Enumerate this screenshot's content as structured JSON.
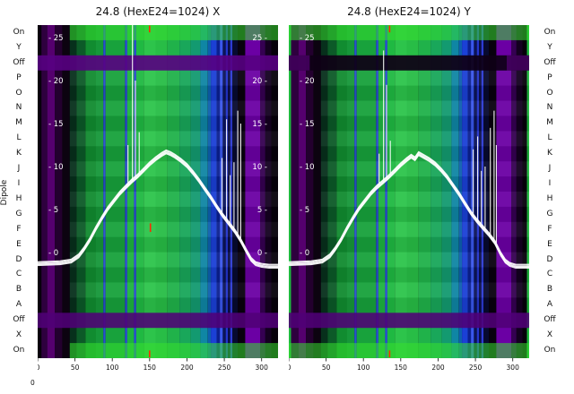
{
  "figure": {
    "dipole_label": "Dipole",
    "corner_label": "0"
  },
  "chart_data": [
    {
      "type": "heatmap+line",
      "title": "24.8 (HexE24=1024) X",
      "x_ticks": [
        0,
        50,
        100,
        150,
        200,
        250,
        300
      ],
      "x_max": 322,
      "y_inner_ticks": [
        25,
        20,
        15,
        10,
        5,
        0
      ],
      "inner_ticks_right": true,
      "y_categories": [
        "On",
        "Y",
        "Off",
        "P",
        "O",
        "N",
        "M",
        "L",
        "K",
        "J",
        "I",
        "H",
        "G",
        "F",
        "E",
        "D",
        "C",
        "B",
        "A",
        "Off",
        "X",
        "On"
      ],
      "heat_columns": [
        [
          0,
          5,
          "#08000c"
        ],
        [
          5,
          13,
          "#2e003e"
        ],
        [
          13,
          23,
          "#55006e"
        ],
        [
          23,
          33,
          "#23002e"
        ],
        [
          33,
          43,
          "#0c0310"
        ],
        [
          43,
          52,
          "#07301c"
        ],
        [
          52,
          64,
          "#0c5a28"
        ],
        [
          64,
          78,
          "#118c30"
        ],
        [
          78,
          88,
          "#169739"
        ],
        [
          88,
          91,
          "#2850d2"
        ],
        [
          91,
          117,
          "#18a23c"
        ],
        [
          117,
          120,
          "#2b4fd8"
        ],
        [
          120,
          129,
          "#1db43f"
        ],
        [
          129,
          132,
          "#2b4fd8"
        ],
        [
          132,
          142,
          "#1fb942"
        ],
        [
          142,
          158,
          "#2dc44b"
        ],
        [
          158,
          174,
          "#28bd46"
        ],
        [
          174,
          190,
          "#20b24a"
        ],
        [
          190,
          205,
          "#19a75a"
        ],
        [
          205,
          218,
          "#139a70"
        ],
        [
          218,
          228,
          "#0f86a4"
        ],
        [
          228,
          232,
          "#0d5fae"
        ],
        [
          232,
          240,
          "#1b40d6"
        ],
        [
          240,
          244,
          "#0c2090"
        ],
        [
          244,
          248,
          "#3a57ee"
        ],
        [
          248,
          252,
          "#0b1458"
        ],
        [
          252,
          255,
          "#2334cc"
        ],
        [
          255,
          258,
          "#0a0e44"
        ],
        [
          258,
          261,
          "#2d3bd4"
        ],
        [
          261,
          268,
          "#070a30"
        ],
        [
          268,
          278,
          "#08010e"
        ],
        [
          278,
          298,
          "#6b00a4"
        ],
        [
          298,
          305,
          "#350052"
        ],
        [
          305,
          313,
          "#140020"
        ],
        [
          313,
          322,
          "#06000a"
        ]
      ],
      "row_overlays": [
        [
          0,
          43,
          322,
          "rgba(55,225,45,0.55)"
        ],
        [
          2,
          0,
          322,
          "rgba(88,0,130,0.9)"
        ],
        [
          19,
          0,
          322,
          "rgba(80,0,118,0.88)"
        ],
        [
          21,
          43,
          322,
          "rgba(55,225,45,0.55)"
        ]
      ],
      "trace": {
        "color": "#ffffff",
        "offsets": [
          -2.2,
          -1.2,
          0,
          1,
          2
        ],
        "points": [
          [
            0,
            -1.3
          ],
          [
            15,
            -1.25
          ],
          [
            30,
            -1.2
          ],
          [
            45,
            -1.0
          ],
          [
            55,
            -0.4
          ],
          [
            62,
            0.4
          ],
          [
            70,
            1.5
          ],
          [
            78,
            2.8
          ],
          [
            86,
            4.0
          ],
          [
            94,
            5.1
          ],
          [
            102,
            6.0
          ],
          [
            110,
            6.9
          ],
          [
            118,
            7.6
          ],
          [
            126,
            8.3
          ],
          [
            134,
            8.9
          ],
          [
            142,
            9.6
          ],
          [
            150,
            10.3
          ],
          [
            158,
            10.9
          ],
          [
            166,
            11.4
          ],
          [
            172,
            11.7
          ],
          [
            178,
            11.5
          ],
          [
            184,
            11.2
          ],
          [
            192,
            10.7
          ],
          [
            200,
            10.1
          ],
          [
            208,
            9.3
          ],
          [
            216,
            8.4
          ],
          [
            224,
            7.4
          ],
          [
            232,
            6.4
          ],
          [
            240,
            5.3
          ],
          [
            248,
            4.3
          ],
          [
            256,
            3.4
          ],
          [
            264,
            2.5
          ],
          [
            272,
            1.4
          ],
          [
            280,
            0.1
          ],
          [
            286,
            -0.8
          ],
          [
            292,
            -1.3
          ],
          [
            300,
            -1.5
          ],
          [
            310,
            -1.6
          ],
          [
            322,
            -1.6
          ]
        ]
      },
      "spikes": [
        [
          121,
          12.5
        ],
        [
          127,
          27.5
        ],
        [
          131,
          20
        ],
        [
          136,
          14
        ],
        [
          247,
          11
        ],
        [
          253,
          15.5
        ],
        [
          258,
          9
        ],
        [
          263,
          10.5
        ],
        [
          268,
          16.5
        ],
        [
          272,
          15
        ]
      ],
      "markers": {
        "color": "#ff2a00",
        "items": [
          [
            150,
            25.6,
            26.4
          ],
          [
            151,
            2.4,
            3.4
          ],
          [
            150,
            -11.4,
            -12.2
          ]
        ]
      }
    },
    {
      "type": "heatmap+line",
      "title": "24.8 (HexE24=1024) Y",
      "x_ticks": [
        0,
        50,
        100,
        150,
        200,
        250,
        300
      ],
      "x_max": 322,
      "y_inner_ticks": [
        25,
        20,
        15,
        10,
        5,
        0
      ],
      "inner_ticks_right": false,
      "y_categories": [
        "On",
        "Y",
        "Off",
        "P",
        "O",
        "N",
        "M",
        "L",
        "K",
        "J",
        "I",
        "H",
        "G",
        "F",
        "E",
        "D",
        "C",
        "B",
        "A",
        "Off",
        "X",
        "On"
      ],
      "heat_columns": [
        [
          0,
          3,
          "#1fb93f"
        ],
        [
          3,
          13,
          "#2e003e"
        ],
        [
          13,
          23,
          "#55006e"
        ],
        [
          23,
          33,
          "#23002e"
        ],
        [
          33,
          43,
          "#0c0310"
        ],
        [
          43,
          52,
          "#07301c"
        ],
        [
          52,
          64,
          "#0c5a28"
        ],
        [
          64,
          78,
          "#118c30"
        ],
        [
          78,
          88,
          "#169739"
        ],
        [
          88,
          91,
          "#2850d2"
        ],
        [
          91,
          117,
          "#18a23c"
        ],
        [
          117,
          120,
          "#2b4fd8"
        ],
        [
          120,
          129,
          "#1db43f"
        ],
        [
          129,
          132,
          "#2b4fd8"
        ],
        [
          132,
          142,
          "#1fb942"
        ],
        [
          142,
          158,
          "#2dc44b"
        ],
        [
          158,
          174,
          "#28bd46"
        ],
        [
          174,
          190,
          "#20b24a"
        ],
        [
          190,
          205,
          "#19a75a"
        ],
        [
          205,
          218,
          "#139a70"
        ],
        [
          218,
          228,
          "#0f86a4"
        ],
        [
          228,
          232,
          "#0d5fae"
        ],
        [
          232,
          240,
          "#1b40d6"
        ],
        [
          240,
          244,
          "#0c2090"
        ],
        [
          244,
          248,
          "#3a57ee"
        ],
        [
          248,
          252,
          "#0b1458"
        ],
        [
          252,
          255,
          "#2334cc"
        ],
        [
          255,
          258,
          "#0a0e44"
        ],
        [
          258,
          261,
          "#2d3bd4"
        ],
        [
          261,
          268,
          "#070a30"
        ],
        [
          268,
          278,
          "#08010e"
        ],
        [
          278,
          298,
          "#6b00a4"
        ],
        [
          298,
          305,
          "#350052"
        ],
        [
          305,
          313,
          "#140020"
        ],
        [
          313,
          319,
          "#06000a"
        ],
        [
          319,
          322,
          "#1fb93f"
        ]
      ],
      "row_overlays": [
        [
          0,
          0,
          322,
          "rgba(55,225,45,0.55)"
        ],
        [
          2,
          0,
          322,
          "rgba(15,0,22,0.93)"
        ],
        [
          2,
          0,
          28,
          "rgba(100,0,140,0.55)"
        ],
        [
          2,
          292,
          322,
          "rgba(100,0,140,0.55)"
        ],
        [
          19,
          0,
          322,
          "rgba(80,0,118,0.88)"
        ],
        [
          21,
          0,
          322,
          "rgba(55,225,45,0.55)"
        ]
      ],
      "trace": {
        "color": "#ffffff",
        "offsets": [
          -2.2,
          -1.2,
          0,
          1,
          2
        ],
        "points": [
          [
            0,
            -1.3
          ],
          [
            15,
            -1.25
          ],
          [
            30,
            -1.2
          ],
          [
            45,
            -1.0
          ],
          [
            55,
            -0.4
          ],
          [
            62,
            0.4
          ],
          [
            70,
            1.5
          ],
          [
            78,
            2.8
          ],
          [
            86,
            4.0
          ],
          [
            94,
            5.1
          ],
          [
            102,
            6.0
          ],
          [
            110,
            6.9
          ],
          [
            118,
            7.6
          ],
          [
            126,
            8.2
          ],
          [
            134,
            8.8
          ],
          [
            142,
            9.5
          ],
          [
            150,
            10.2
          ],
          [
            158,
            10.8
          ],
          [
            164,
            11.2
          ],
          [
            169,
            10.9
          ],
          [
            174,
            11.5
          ],
          [
            180,
            11.2
          ],
          [
            188,
            10.8
          ],
          [
            196,
            10.3
          ],
          [
            204,
            9.6
          ],
          [
            212,
            8.8
          ],
          [
            220,
            7.8
          ],
          [
            228,
            6.8
          ],
          [
            236,
            5.7
          ],
          [
            244,
            4.6
          ],
          [
            252,
            3.7
          ],
          [
            260,
            2.9
          ],
          [
            268,
            2.1
          ],
          [
            276,
            1.2
          ],
          [
            284,
            -0.2
          ],
          [
            290,
            -1.0
          ],
          [
            296,
            -1.4
          ],
          [
            304,
            -1.6
          ],
          [
            322,
            -1.6
          ]
        ]
      },
      "spikes": [
        [
          121,
          11.5
        ],
        [
          127,
          23.5
        ],
        [
          131,
          19.5
        ],
        [
          136,
          13
        ],
        [
          247,
          12
        ],
        [
          253,
          13.5
        ],
        [
          258,
          9.5
        ],
        [
          263,
          10
        ],
        [
          270,
          14.5
        ],
        [
          275,
          16.5
        ],
        [
          278,
          12.5
        ]
      ],
      "markers": {
        "color": "#ff2a00",
        "items": [
          [
            135,
            25.6,
            26.4
          ],
          [
            135,
            -11.4,
            -12.2
          ]
        ]
      }
    }
  ]
}
